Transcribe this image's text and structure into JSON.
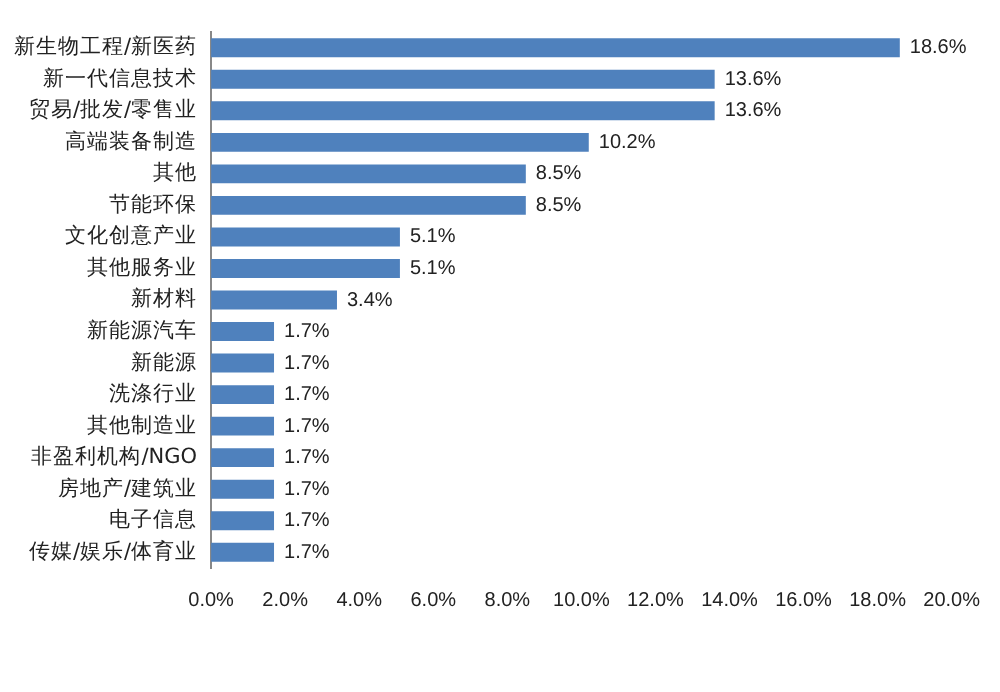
{
  "chart_data": {
    "type": "bar",
    "orientation": "horizontal",
    "categories": [
      "新生物工程/新医药",
      "新一代信息技术",
      "贸易/批发/零售业",
      "高端装备制造",
      "其他",
      "节能环保",
      "文化创意产业",
      "其他服务业",
      "新材料",
      "新能源汽车",
      "新能源",
      "洗涤行业",
      "其他制造业",
      "非盈利机构/NGO",
      "房地产/建筑业",
      "电子信息",
      "传媒/娱乐/体育业"
    ],
    "values": [
      18.6,
      13.6,
      13.6,
      10.2,
      8.5,
      8.5,
      5.1,
      5.1,
      3.4,
      1.7,
      1.7,
      1.7,
      1.7,
      1.7,
      1.7,
      1.7,
      1.7
    ],
    "value_labels": [
      "18.6%",
      "13.6%",
      "13.6%",
      "10.2%",
      "8.5%",
      "8.5%",
      "5.1%",
      "5.1%",
      "3.4%",
      "1.7%",
      "1.7%",
      "1.7%",
      "1.7%",
      "1.7%",
      "1.7%",
      "1.7%",
      "1.7%"
    ],
    "color": "#4f81bd",
    "xlim": [
      0,
      20
    ],
    "xticks": [
      {
        "value": 0,
        "label": "0.0%"
      },
      {
        "value": 2,
        "label": "2.0%"
      },
      {
        "value": 4,
        "label": "4.0%"
      },
      {
        "value": 6,
        "label": "6.0%"
      },
      {
        "value": 8,
        "label": "8.0%"
      },
      {
        "value": 10,
        "label": "10.0%"
      },
      {
        "value": 12,
        "label": "12.0%"
      },
      {
        "value": 14,
        "label": "14.0%"
      },
      {
        "value": 16,
        "label": "16.0%"
      },
      {
        "value": 18,
        "label": "18.0%"
      },
      {
        "value": 20,
        "label": "20.0%"
      }
    ],
    "grid": false,
    "legend": false
  }
}
